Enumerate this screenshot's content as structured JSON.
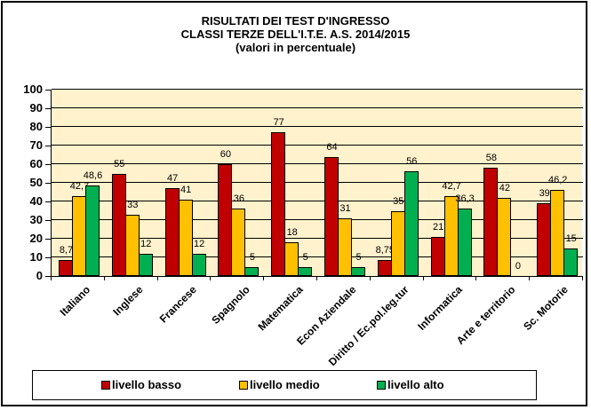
{
  "title": {
    "line1": "RISULTATI DEI TEST D'INGRESSO",
    "line2": "CLASSI TERZE DELL'I.T.E. A.S. 2014/2015",
    "line3": "(valori  in percentuale)"
  },
  "colors": {
    "livello_basso": "#C00000",
    "livello_medio": "#FFC000",
    "livello_alto": "#00B050",
    "plot_background": "#FFF2CC"
  },
  "legend": {
    "items": [
      {
        "label": "livello basso",
        "color": "#C00000"
      },
      {
        "label": "livello medio",
        "color": "#FFC000"
      },
      {
        "label": "livello alto",
        "color": "#00B050"
      }
    ]
  },
  "chart_data": {
    "type": "bar",
    "title": "RISULTATI DEI TEST D'INGRESSO - CLASSI TERZE DELL'I.T.E. A.S. 2014/2015 (valori in percentuale)",
    "xlabel": "",
    "ylabel": "",
    "ylim": [
      0,
      100
    ],
    "yticks": [
      0,
      10,
      20,
      30,
      40,
      50,
      60,
      70,
      80,
      90,
      100
    ],
    "grid": true,
    "legend_position": "bottom",
    "categories": [
      "Italiano",
      "Inglese",
      "Francese",
      "Spagnolo",
      "Matematica",
      "Econ Aziendale",
      "Diritto / Ec.pol.leg.tur",
      "Informatica",
      "Arte e territorio",
      "Sc. Motorie"
    ],
    "series": [
      {
        "name": "livello basso",
        "color": "#C00000",
        "values": [
          8.7,
          55,
          47,
          60,
          77,
          64,
          8.75,
          21,
          58,
          39
        ],
        "labels": [
          "8,7",
          "55",
          "47",
          "60",
          "77",
          "64",
          "8,75",
          "21",
          "58",
          "39"
        ]
      },
      {
        "name": "livello medio",
        "color": "#FFC000",
        "values": [
          42.7,
          33,
          41,
          36,
          18,
          31,
          35,
          42.7,
          42,
          46.2
        ],
        "labels": [
          "42,7",
          "33",
          "41",
          "36",
          "18",
          "31",
          "35",
          "42,7",
          "42",
          "46,2"
        ]
      },
      {
        "name": "livello alto",
        "color": "#00B050",
        "values": [
          48.6,
          12,
          12,
          5,
          5,
          5,
          56,
          36.3,
          0,
          15
        ],
        "labels": [
          "48,6",
          "12",
          "12",
          "5",
          "5",
          "5",
          "56",
          "36,3",
          "0",
          "15"
        ]
      }
    ]
  }
}
